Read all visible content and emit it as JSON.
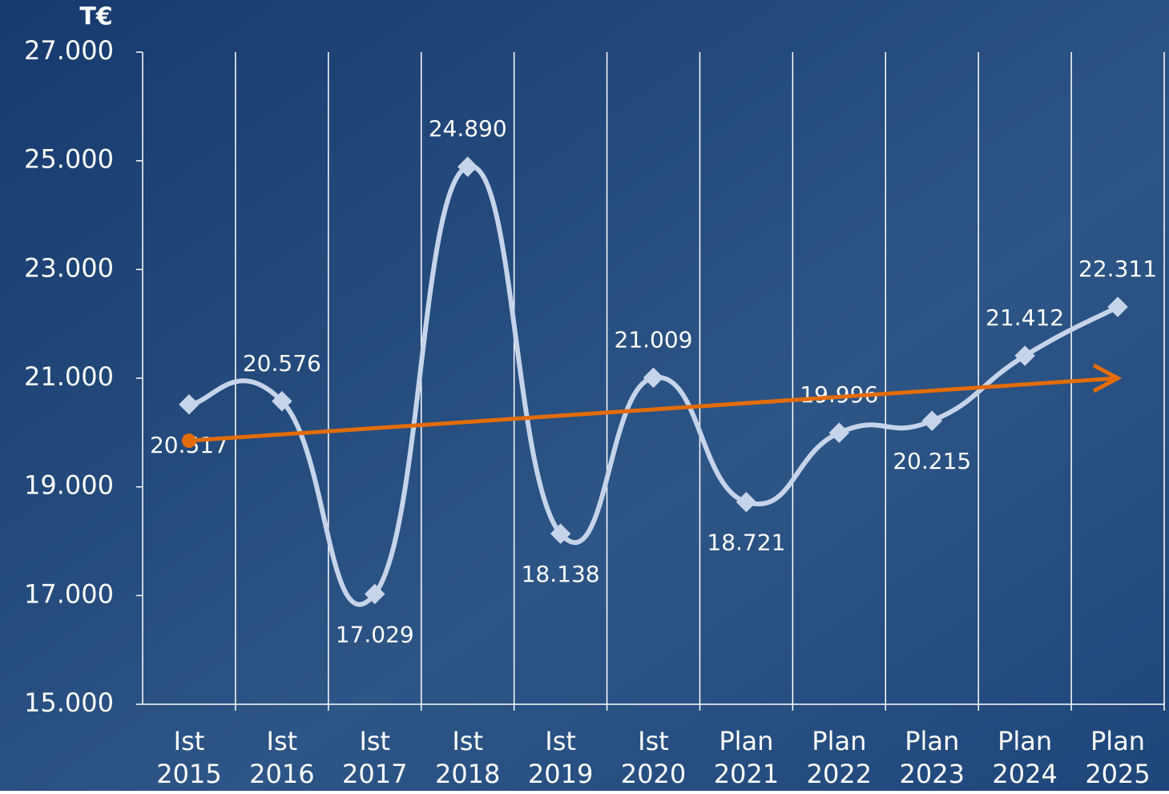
{
  "chart_data": {
    "type": "line",
    "y_unit": "T€",
    "categories": [
      [
        "Ist",
        "2015"
      ],
      [
        "Ist",
        "2016"
      ],
      [
        "Ist",
        "2017"
      ],
      [
        "Ist",
        "2018"
      ],
      [
        "Ist",
        "2019"
      ],
      [
        "Ist",
        "2020"
      ],
      [
        "Plan",
        "2021"
      ],
      [
        "Plan",
        "2022"
      ],
      [
        "Plan",
        "2023"
      ],
      [
        "Plan",
        "2024"
      ],
      [
        "Plan",
        "2025"
      ]
    ],
    "values": [
      20517,
      20576,
      17029,
      24890,
      18138,
      21009,
      18721,
      19996,
      20215,
      21412,
      22311
    ],
    "value_labels": [
      "20.517",
      "20.576",
      "17.029",
      "24.890",
      "18.138",
      "21.009",
      "18.721",
      "19.996",
      "20.215",
      "21.412",
      "22.311"
    ],
    "color": "#c6d4ea",
    "trend_line": {
      "values": [
        19850,
        21000
      ],
      "color": "#e36c0a"
    },
    "ylim": [
      15000,
      27000
    ],
    "yticks": [
      {
        "value": 15000,
        "label": "15.000"
      },
      {
        "value": 17000,
        "label": "17.000"
      },
      {
        "value": 19000,
        "label": "19.000"
      },
      {
        "value": 21000,
        "label": "21.000"
      },
      {
        "value": 23000,
        "label": "23.000"
      },
      {
        "value": 25000,
        "label": "25.000"
      },
      {
        "value": 27000,
        "label": "27.000"
      }
    ],
    "grid": true
  }
}
